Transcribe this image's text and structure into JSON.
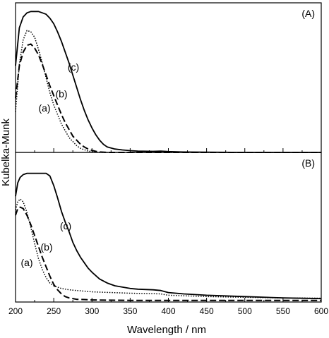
{
  "chart_data": {
    "type": "line",
    "xlabel": "Wavelength / nm",
    "ylabel": "Kubelka-Munk",
    "xlim": [
      200,
      600
    ],
    "xticks": [
      200,
      250,
      300,
      350,
      400,
      450,
      500,
      550,
      600
    ],
    "y_tick_labels": false,
    "grid": false,
    "legend": "none",
    "panels": [
      {
        "label": "(A)",
        "ylim": [
          0,
          1
        ],
        "series": [
          {
            "name": "(a)",
            "style": "dotted",
            "x": [
              200,
              205,
              210,
              215,
              220,
              225,
              230,
              235,
              240,
              245,
              250,
              255,
              260,
              265,
              270,
              275,
              280,
              285,
              290,
              295,
              300,
              310,
              320,
              340,
              380,
              420,
              500,
              600
            ],
            "y": [
              0.3,
              0.65,
              0.83,
              0.9,
              0.89,
              0.85,
              0.76,
              0.66,
              0.55,
              0.44,
              0.35,
              0.28,
              0.21,
              0.16,
              0.11,
              0.08,
              0.05,
              0.03,
              0.02,
              0.01,
              0.005,
              0.0,
              0.0,
              0.0,
              0.0,
              0.0,
              0.0,
              0.0
            ]
          },
          {
            "name": "(b)",
            "style": "dashed",
            "x": [
              200,
              205,
              210,
              215,
              220,
              225,
              230,
              235,
              240,
              245,
              250,
              255,
              260,
              265,
              270,
              275,
              280,
              285,
              290,
              295,
              300,
              305,
              310,
              320,
              340,
              380,
              420,
              500,
              600
            ],
            "y": [
              0.4,
              0.64,
              0.74,
              0.79,
              0.8,
              0.77,
              0.72,
              0.65,
              0.57,
              0.49,
              0.42,
              0.35,
              0.28,
              0.22,
              0.17,
              0.12,
              0.09,
              0.06,
              0.04,
              0.025,
              0.015,
              0.008,
              0.003,
              0.0,
              0.0,
              0.0,
              0.0,
              0.0,
              0.0
            ]
          },
          {
            "name": "(c)",
            "style": "solid",
            "x": [
              200,
              205,
              210,
              215,
              220,
              225,
              230,
              235,
              240,
              245,
              250,
              255,
              260,
              265,
              270,
              275,
              280,
              285,
              290,
              295,
              300,
              305,
              310,
              315,
              320,
              330,
              340,
              350,
              360,
              380,
              390,
              400,
              420,
              450,
              500,
              550,
              600
            ],
            "y": [
              0.64,
              0.92,
              1.0,
              1.03,
              1.04,
              1.04,
              1.04,
              1.03,
              1.02,
              0.99,
              0.95,
              0.89,
              0.82,
              0.74,
              0.66,
              0.57,
              0.48,
              0.39,
              0.31,
              0.24,
              0.18,
              0.13,
              0.09,
              0.06,
              0.04,
              0.025,
              0.018,
              0.013,
              0.01,
              0.008,
              0.01,
              0.006,
              0.003,
              0.002,
              0.0,
              0.0,
              0.0
            ]
          }
        ]
      },
      {
        "label": "(B)",
        "ylim": [
          0,
          1
        ],
        "series": [
          {
            "name": "(a)",
            "style": "dotted",
            "x": [
              200,
              203,
              206,
              210,
              215,
              220,
              225,
              230,
              235,
              240,
              245,
              250,
              260,
              270,
              280,
              290,
              300,
              350,
              390,
              400,
              450,
              500,
              550,
              600
            ],
            "y": [
              0.68,
              0.74,
              0.76,
              0.74,
              0.66,
              0.55,
              0.43,
              0.32,
              0.24,
              0.18,
              0.14,
              0.12,
              0.1,
              0.09,
              0.085,
              0.08,
              0.075,
              0.065,
              0.06,
              0.05,
              0.04,
              0.035,
              0.03,
              0.028
            ]
          },
          {
            "name": "(b)",
            "style": "dashed",
            "x": [
              200,
              203,
              206,
              210,
              215,
              220,
              225,
              230,
              235,
              240,
              245,
              250,
              255,
              260,
              265,
              270,
              280,
              290,
              300,
              350,
              400,
              450,
              500,
              550,
              600
            ],
            "y": [
              0.64,
              0.69,
              0.7,
              0.69,
              0.64,
              0.57,
              0.49,
              0.41,
              0.33,
              0.26,
              0.19,
              0.13,
              0.09,
              0.06,
              0.04,
              0.03,
              0.02,
              0.018,
              0.015,
              0.012,
              0.012,
              0.012,
              0.012,
              0.012,
              0.012
            ]
          },
          {
            "name": "(c)",
            "style": "solid",
            "x": [
              200,
              203,
              206,
              210,
              215,
              220,
              225,
              230,
              235,
              240,
              245,
              250,
              255,
              260,
              265,
              270,
              275,
              280,
              285,
              290,
              295,
              300,
              310,
              320,
              330,
              340,
              350,
              360,
              380,
              390,
              400,
              420,
              450,
              500,
              550,
              600
            ],
            "y": [
              0.78,
              0.88,
              0.92,
              0.94,
              0.95,
              0.95,
              0.95,
              0.95,
              0.95,
              0.95,
              0.93,
              0.86,
              0.77,
              0.67,
              0.59,
              0.52,
              0.44,
              0.38,
              0.33,
              0.29,
              0.25,
              0.22,
              0.17,
              0.14,
              0.12,
              0.11,
              0.1,
              0.095,
              0.09,
              0.085,
              0.07,
              0.06,
              0.05,
              0.04,
              0.03,
              0.025
            ]
          }
        ]
      }
    ]
  }
}
